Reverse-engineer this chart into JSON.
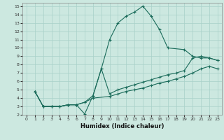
{
  "xlabel": "Humidex (Indice chaleur)",
  "bg_color": "#cce8e0",
  "grid_color": "#a8d0c8",
  "line_color": "#1a6b5a",
  "xlim": [
    -0.5,
    23.5
  ],
  "ylim": [
    2,
    15.4
  ],
  "xticks": [
    0,
    1,
    2,
    3,
    4,
    5,
    6,
    7,
    8,
    9,
    10,
    11,
    12,
    13,
    14,
    15,
    16,
    17,
    18,
    19,
    20,
    21,
    22,
    23
  ],
  "yticks": [
    2,
    3,
    4,
    5,
    6,
    7,
    8,
    9,
    10,
    11,
    12,
    13,
    14,
    15
  ],
  "series": [
    {
      "x": [
        1,
        2,
        3,
        4,
        5,
        6,
        7,
        8,
        9,
        10,
        11,
        12,
        13,
        14,
        15,
        16,
        17,
        19,
        20,
        21,
        22,
        23
      ],
      "y": [
        4.8,
        3.0,
        3.0,
        3.0,
        3.2,
        3.2,
        2.1,
        4.3,
        7.5,
        11.0,
        13.0,
        13.8,
        14.3,
        15.0,
        13.8,
        12.2,
        10.0,
        9.8,
        9.0,
        8.8,
        8.8,
        8.5
      ]
    },
    {
      "x": [
        1,
        2,
        3,
        4,
        5,
        6,
        7,
        8,
        9,
        10,
        11,
        12,
        13,
        14,
        15,
        16,
        17,
        18,
        19,
        20,
        21,
        22,
        23
      ],
      "y": [
        4.8,
        3.0,
        3.0,
        3.0,
        3.2,
        3.2,
        3.5,
        4.3,
        7.5,
        4.5,
        5.0,
        5.3,
        5.6,
        5.9,
        6.2,
        6.5,
        6.8,
        7.0,
        7.3,
        8.8,
        9.0,
        8.8,
        8.5
      ]
    },
    {
      "x": [
        1,
        2,
        3,
        4,
        5,
        6,
        7,
        8,
        10,
        11,
        12,
        13,
        14,
        15,
        16,
        17,
        18,
        19,
        20,
        21,
        22,
        23
      ],
      "y": [
        4.8,
        3.0,
        3.0,
        3.0,
        3.2,
        3.2,
        3.5,
        4.0,
        4.2,
        4.5,
        4.8,
        5.0,
        5.2,
        5.5,
        5.8,
        6.0,
        6.3,
        6.6,
        7.0,
        7.5,
        7.8,
        7.5
      ]
    }
  ]
}
